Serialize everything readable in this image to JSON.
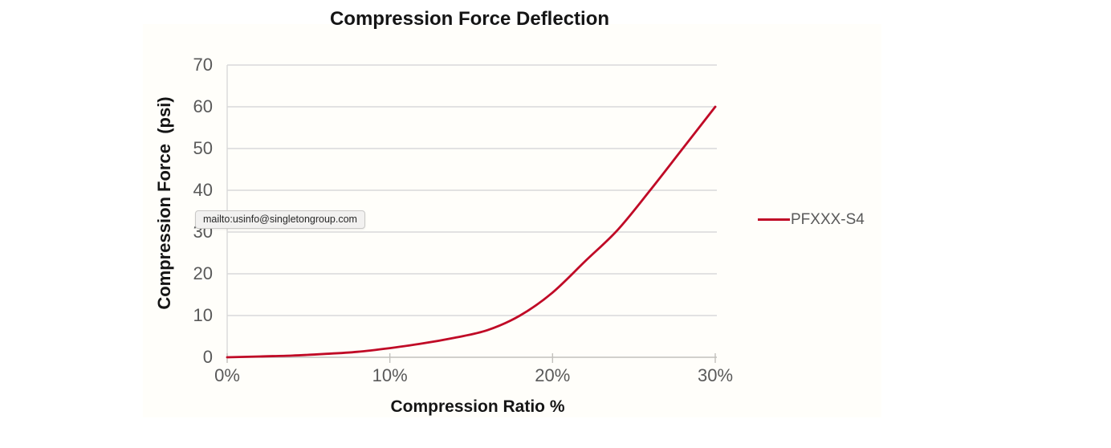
{
  "tooltip": {
    "text": "mailto:usinfo@singletongroup.com"
  },
  "chart_data": {
    "type": "line",
    "title": "Compression Force Deflection",
    "xlabel": "Compression Ratio %",
    "ylabel": "Compression Force  (psi)",
    "xlim": [
      0,
      30
    ],
    "ylim": [
      0,
      70
    ],
    "x_ticks": [
      "0%",
      "10%",
      "20%",
      "30%"
    ],
    "y_ticks": [
      0,
      10,
      20,
      30,
      40,
      50,
      60,
      70
    ],
    "grid": "horizontal-only",
    "legend_position": "right-middle",
    "series": [
      {
        "name": "PFXXX-S4",
        "color": "#c00a26",
        "x": [
          0,
          2,
          4,
          6,
          8,
          10,
          12,
          14,
          16,
          18,
          20,
          22,
          24,
          26,
          28,
          30
        ],
        "y": [
          0,
          0.2,
          0.4,
          0.8,
          1.3,
          2.2,
          3.3,
          4.7,
          6.5,
          10,
          15.5,
          23,
          30.5,
          40,
          50,
          60
        ]
      }
    ],
    "colors": {
      "series": "#c00a26",
      "gridline": "#d9d9d9",
      "axis": "#c2c0bc",
      "tick_label": "#595959",
      "text": "#151515"
    }
  }
}
